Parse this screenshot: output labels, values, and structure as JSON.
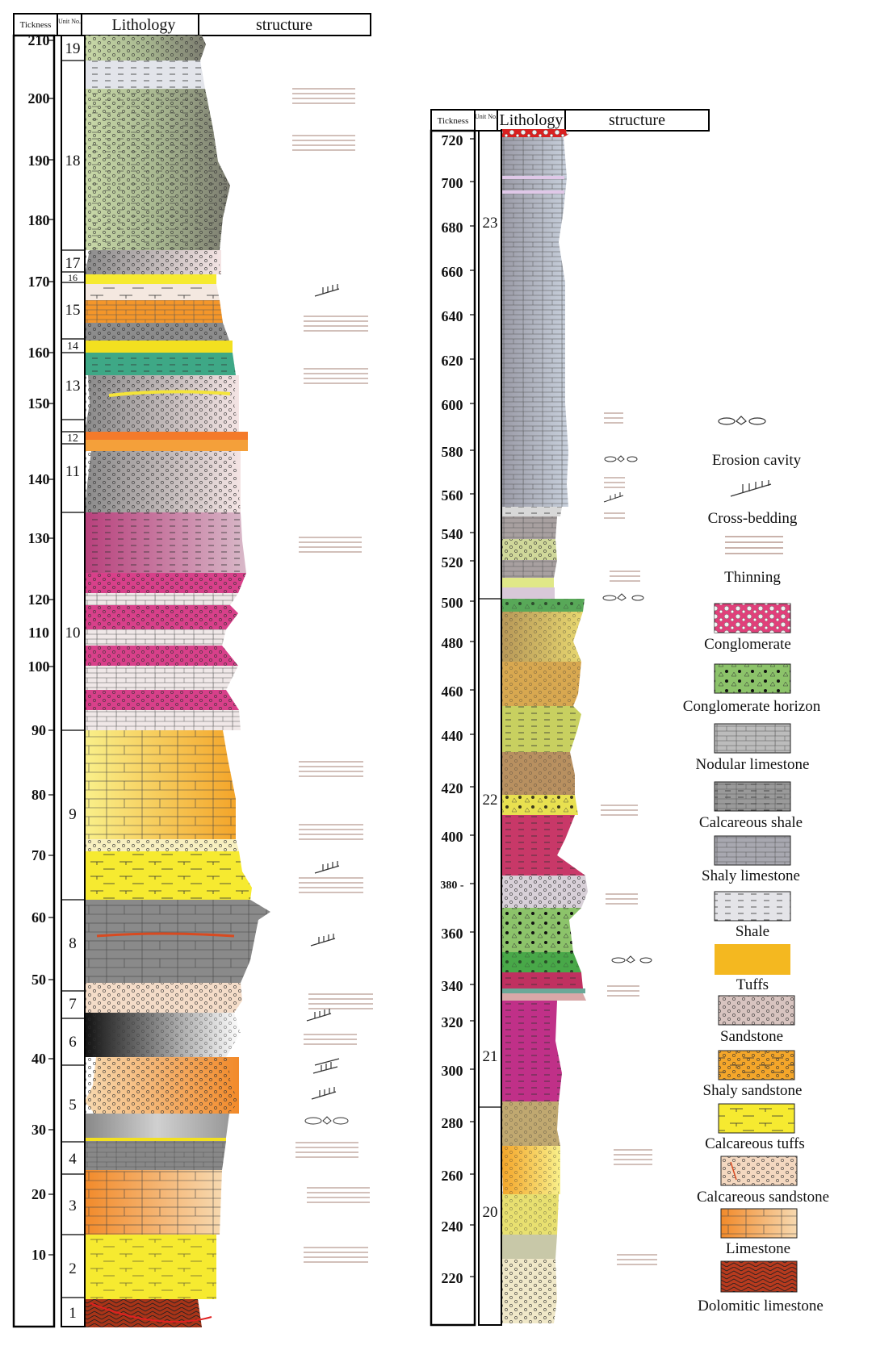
{
  "left_column": {
    "headers": {
      "thickness": "Tickness",
      "unit_no": "Unit No.",
      "lithology": "Lithology",
      "structure": "structure"
    },
    "ticks": [
      "210",
      "200",
      "190",
      "180",
      "170",
      "160",
      "150",
      "140",
      "130",
      "120",
      "110",
      "100",
      "90",
      "80",
      "70",
      "60",
      "50",
      "40",
      "30",
      "20",
      "10"
    ],
    "units": [
      "19",
      "18",
      "17",
      "16",
      "15",
      "14",
      "13",
      "12",
      "11",
      "10",
      "9",
      "8",
      "7",
      "6",
      "5",
      "4",
      "3",
      "2",
      "1"
    ]
  },
  "right_column": {
    "headers": {
      "thickness": "Tickness",
      "unit_no": "Unit No.",
      "lithology": "Lithology",
      "structure": "structure"
    },
    "ticks": [
      "720",
      "700",
      "680",
      "660",
      "640",
      "620",
      "600",
      "580",
      "560",
      "540",
      "520",
      "500",
      "480",
      "460",
      "440",
      "420",
      "400",
      "380 -",
      "360",
      "340",
      "320",
      "300",
      "280",
      "260",
      "240",
      "220"
    ],
    "units": [
      "23",
      "22",
      "21",
      "20"
    ]
  },
  "legend": {
    "items": [
      {
        "label": "Erosion cavity",
        "icon": "erosion-cavity-icon"
      },
      {
        "label": "Cross-bedding",
        "icon": "cross-bedding-icon"
      },
      {
        "label": "Thinning",
        "icon": "thinning-icon"
      },
      {
        "label": "Conglomerate",
        "color": "#e0407a"
      },
      {
        "label": "Conglomerate horizon",
        "color": "#8cc36a"
      },
      {
        "label": "Nodular limestone",
        "color": "#bcbcbc"
      },
      {
        "label": "Calcareous shale",
        "color": "#9a9a9a"
      },
      {
        "label": "Shaly limestone",
        "color": "#a8a8b0"
      },
      {
        "label": "Shale",
        "color": "#e4e4e8"
      },
      {
        "label": "Tuffs",
        "color": "#f4b820"
      },
      {
        "label": "Sandstone",
        "color": "#d8c4c0"
      },
      {
        "label": "Shaly sandstone",
        "color": "#f4a62a"
      },
      {
        "label": "Calcareous tuffs",
        "color": "#f6ea30"
      },
      {
        "label": "Calcareous sandstone",
        "color": "#f4d8c0"
      },
      {
        "label": "Limestone",
        "color": "#f4962a"
      },
      {
        "label": "Dolomitic limestone",
        "color": "#b83a1e"
      }
    ]
  }
}
